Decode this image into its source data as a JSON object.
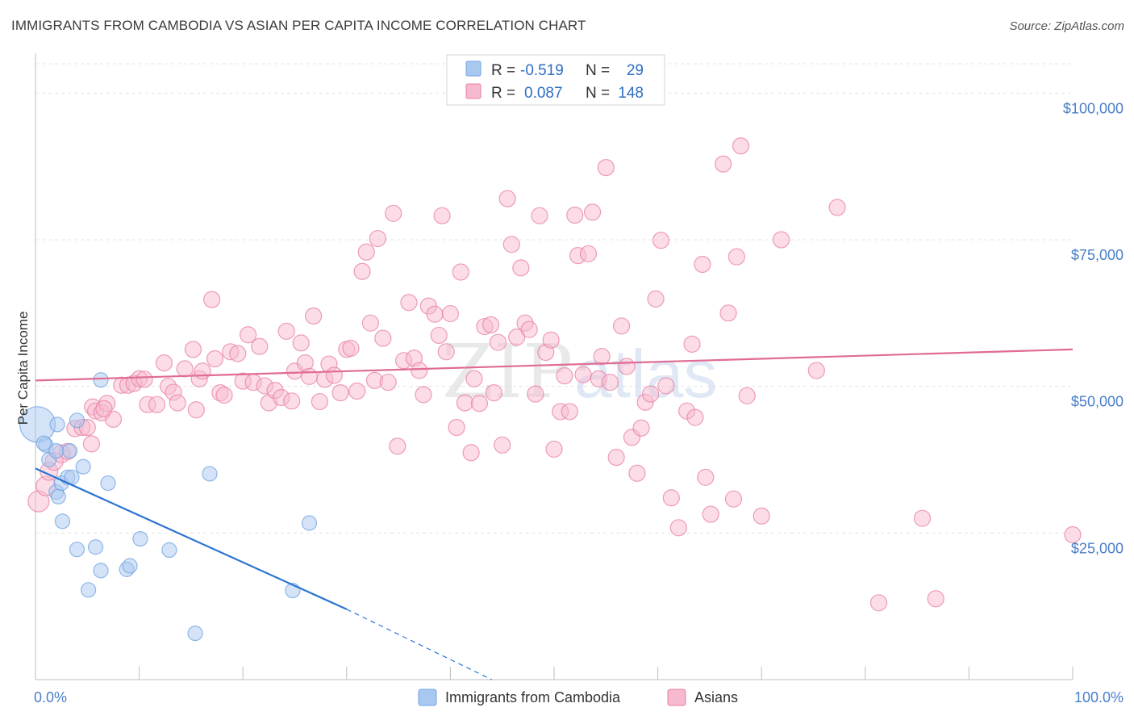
{
  "header": {
    "title": "IMMIGRANTS FROM CAMBODIA VS ASIAN PER CAPITA INCOME CORRELATION CHART",
    "source": "Source: ZipAtlas.com"
  },
  "watermark": {
    "zip": "ZIP",
    "atlas": "atlas"
  },
  "legend": {
    "rows": [
      {
        "r_label": "R =",
        "r_value": "-0.519",
        "n_label": "N =",
        "n_value": "29",
        "color": "#a9c8f0"
      },
      {
        "r_label": "R =",
        "r_value": "0.087",
        "n_label": "N =",
        "n_value": "148",
        "color": "#f7b9cf"
      }
    ]
  },
  "bottom_legend": [
    {
      "label": "Immigrants from Cambodia",
      "color": "#a9c8f0"
    },
    {
      "label": "Asians",
      "color": "#f7b9cf"
    }
  ],
  "chart_data": {
    "type": "scatter",
    "title": "IMMIGRANTS FROM CAMBODIA VS ASIAN PER CAPITA INCOME CORRELATION CHART",
    "ylabel": "Per Capita Income",
    "xlabel": "",
    "xlim": [
      0,
      100
    ],
    "ylim": [
      0,
      105000
    ],
    "x_tick_labels": [
      {
        "value": 0,
        "label": "0.0%"
      },
      {
        "value": 100,
        "label": "100.0%"
      }
    ],
    "y_tick_labels": [
      {
        "value": 25000,
        "label": "$25,000"
      },
      {
        "value": 50000,
        "label": "$50,000"
      },
      {
        "value": 75000,
        "label": "$75,000"
      },
      {
        "value": 100000,
        "label": "$100,000"
      }
    ],
    "grid": true,
    "series": [
      {
        "name": "Immigrants from Cambodia",
        "color": "#6fa3e2",
        "fill": "#a9c8f0",
        "trend": {
          "x": [
            0,
            30
          ],
          "y": [
            36000,
            12000
          ],
          "dashed_to": [
            44,
            0
          ]
        },
        "points": [
          [
            0.2,
            43500,
            22
          ],
          [
            1.0,
            40000,
            9
          ],
          [
            1.3,
            37500,
            9
          ],
          [
            2.0,
            39000,
            9
          ],
          [
            2.0,
            32000,
            9
          ],
          [
            2.1,
            43500,
            9
          ],
          [
            2.2,
            31200,
            9
          ],
          [
            2.5,
            33500,
            9
          ],
          [
            2.6,
            27000,
            9
          ],
          [
            3.1,
            34500,
            9
          ],
          [
            3.3,
            39000,
            9
          ],
          [
            3.5,
            34500,
            9
          ],
          [
            4.0,
            22200,
            9
          ],
          [
            4.0,
            44200,
            9
          ],
          [
            4.6,
            36300,
            9
          ],
          [
            5.1,
            15300,
            9
          ],
          [
            5.8,
            22600,
            9
          ],
          [
            6.3,
            18600,
            9
          ],
          [
            6.3,
            51100,
            9
          ],
          [
            7.0,
            33500,
            9
          ],
          [
            8.8,
            18800,
            9
          ],
          [
            9.1,
            19400,
            9
          ],
          [
            10.1,
            24000,
            9
          ],
          [
            12.9,
            22100,
            9
          ],
          [
            15.4,
            7900,
            9
          ],
          [
            16.8,
            35100,
            9
          ],
          [
            24.8,
            15200,
            9
          ],
          [
            26.4,
            26700,
            9
          ],
          [
            0.8,
            40300,
            9
          ]
        ]
      },
      {
        "name": "Asians",
        "color": "#e87fa3",
        "fill": "#f7b9cf",
        "trend": {
          "x": [
            0,
            100
          ],
          "y": [
            51000,
            56300
          ]
        },
        "points": [
          [
            0.3,
            30400,
            13
          ],
          [
            1.0,
            33000,
            12
          ],
          [
            1.3,
            35500,
            11
          ],
          [
            1.8,
            37200,
            11
          ],
          [
            2.5,
            38500,
            11
          ],
          [
            3.1,
            38900,
            10
          ],
          [
            3.8,
            42800,
            10
          ],
          [
            4.5,
            43000,
            10
          ],
          [
            5.0,
            43000,
            10
          ],
          [
            5.5,
            46500,
            10
          ],
          [
            5.8,
            45800,
            10
          ],
          [
            6.4,
            45500,
            10
          ],
          [
            6.9,
            47100,
            10
          ],
          [
            7.5,
            44400,
            10
          ],
          [
            8.3,
            50200,
            10
          ],
          [
            8.9,
            50200,
            10
          ],
          [
            9.5,
            50500,
            10
          ],
          [
            10.0,
            51300,
            10
          ],
          [
            10.5,
            51200,
            10
          ],
          [
            10.8,
            46900,
            10
          ],
          [
            11.7,
            46900,
            10
          ],
          [
            12.4,
            54000,
            10
          ],
          [
            12.8,
            50000,
            10
          ],
          [
            13.3,
            49000,
            10
          ],
          [
            13.7,
            47200,
            10
          ],
          [
            14.4,
            53000,
            10
          ],
          [
            15.2,
            56300,
            10
          ],
          [
            15.8,
            51300,
            10
          ],
          [
            16.1,
            52600,
            10
          ],
          [
            17.0,
            64800,
            10
          ],
          [
            17.3,
            54700,
            10
          ],
          [
            17.8,
            48900,
            10
          ],
          [
            18.2,
            48500,
            10
          ],
          [
            18.8,
            55900,
            10
          ],
          [
            19.5,
            55600,
            10
          ],
          [
            20.0,
            50900,
            10
          ],
          [
            20.5,
            58800,
            10
          ],
          [
            21.0,
            50700,
            10
          ],
          [
            21.6,
            56800,
            10
          ],
          [
            22.1,
            50100,
            10
          ],
          [
            22.5,
            47200,
            10
          ],
          [
            23.1,
            49300,
            10
          ],
          [
            23.7,
            48100,
            10
          ],
          [
            24.2,
            59400,
            10
          ],
          [
            24.7,
            47500,
            10
          ],
          [
            25.0,
            52600,
            10
          ],
          [
            25.6,
            57400,
            10
          ],
          [
            26.0,
            54000,
            10
          ],
          [
            26.4,
            51700,
            10
          ],
          [
            26.8,
            62000,
            10
          ],
          [
            27.4,
            47400,
            10
          ],
          [
            27.9,
            51200,
            10
          ],
          [
            28.3,
            53800,
            10
          ],
          [
            28.8,
            51900,
            10
          ],
          [
            29.4,
            48900,
            10
          ],
          [
            30.0,
            56300,
            10
          ],
          [
            30.4,
            56500,
            10
          ],
          [
            31.0,
            49200,
            10
          ],
          [
            31.5,
            69600,
            10
          ],
          [
            31.9,
            72900,
            10
          ],
          [
            32.3,
            60800,
            10
          ],
          [
            32.7,
            51000,
            10
          ],
          [
            33.0,
            75200,
            10
          ],
          [
            33.5,
            58200,
            10
          ],
          [
            34.0,
            50700,
            10
          ],
          [
            34.5,
            79500,
            10
          ],
          [
            34.9,
            39800,
            10
          ],
          [
            35.5,
            54400,
            10
          ],
          [
            36.0,
            64300,
            10
          ],
          [
            36.5,
            54800,
            10
          ],
          [
            37.0,
            52700,
            10
          ],
          [
            37.4,
            48600,
            10
          ],
          [
            37.9,
            63700,
            10
          ],
          [
            38.5,
            62300,
            10
          ],
          [
            38.9,
            58700,
            10
          ],
          [
            39.2,
            79100,
            10
          ],
          [
            39.6,
            55900,
            10
          ],
          [
            40.0,
            62400,
            10
          ],
          [
            40.6,
            43000,
            10
          ],
          [
            41.0,
            69500,
            10
          ],
          [
            41.4,
            47200,
            10
          ],
          [
            42.0,
            38700,
            10
          ],
          [
            42.3,
            51300,
            10
          ],
          [
            42.8,
            47100,
            10
          ],
          [
            43.3,
            60200,
            10
          ],
          [
            43.9,
            60500,
            10
          ],
          [
            44.2,
            48900,
            10
          ],
          [
            44.6,
            57500,
            10
          ],
          [
            45.0,
            40000,
            10
          ],
          [
            45.5,
            82000,
            10
          ],
          [
            45.9,
            74200,
            10
          ],
          [
            46.4,
            58400,
            10
          ],
          [
            46.8,
            70200,
            10
          ],
          [
            47.2,
            60800,
            10
          ],
          [
            47.6,
            59700,
            10
          ],
          [
            48.2,
            48700,
            10
          ],
          [
            48.6,
            79100,
            10
          ],
          [
            49.2,
            55800,
            10
          ],
          [
            49.7,
            57900,
            10
          ],
          [
            50.0,
            39300,
            10
          ],
          [
            50.6,
            45700,
            10
          ],
          [
            51.0,
            51800,
            10
          ],
          [
            51.5,
            45700,
            10
          ],
          [
            52.0,
            79200,
            10
          ],
          [
            52.3,
            72300,
            10
          ],
          [
            52.8,
            52000,
            10
          ],
          [
            53.3,
            72600,
            10
          ],
          [
            53.7,
            79700,
            10
          ],
          [
            54.3,
            51300,
            10
          ],
          [
            54.6,
            55100,
            10
          ],
          [
            55.0,
            87300,
            10
          ],
          [
            55.4,
            50700,
            10
          ],
          [
            56.0,
            37900,
            10
          ],
          [
            56.5,
            60300,
            10
          ],
          [
            57.0,
            53400,
            10
          ],
          [
            57.5,
            41300,
            10
          ],
          [
            58.0,
            35200,
            10
          ],
          [
            58.4,
            42900,
            10
          ],
          [
            58.8,
            47300,
            10
          ],
          [
            59.3,
            48700,
            10
          ],
          [
            59.8,
            64900,
            10
          ],
          [
            60.3,
            74900,
            10
          ],
          [
            60.8,
            50100,
            10
          ],
          [
            61.3,
            31000,
            10
          ],
          [
            62.0,
            25900,
            10
          ],
          [
            62.8,
            45800,
            10
          ],
          [
            63.3,
            57200,
            10
          ],
          [
            63.6,
            44700,
            10
          ],
          [
            64.3,
            70800,
            10
          ],
          [
            64.6,
            34500,
            10
          ],
          [
            65.1,
            28200,
            10
          ],
          [
            66.3,
            87900,
            10
          ],
          [
            66.8,
            62500,
            10
          ],
          [
            67.3,
            30800,
            10
          ],
          [
            67.6,
            72100,
            10
          ],
          [
            68.0,
            91000,
            10
          ],
          [
            68.6,
            48400,
            10
          ],
          [
            70.0,
            27900,
            10
          ],
          [
            71.9,
            75000,
            10
          ],
          [
            75.3,
            52700,
            10
          ],
          [
            77.3,
            80500,
            10
          ],
          [
            81.3,
            13100,
            10
          ],
          [
            85.5,
            27500,
            10
          ],
          [
            86.8,
            13800,
            10
          ],
          [
            100.0,
            24700,
            10
          ],
          [
            5.4,
            40200,
            10
          ],
          [
            6.6,
            46200,
            10
          ],
          [
            15.5,
            46000,
            10
          ]
        ]
      }
    ]
  }
}
